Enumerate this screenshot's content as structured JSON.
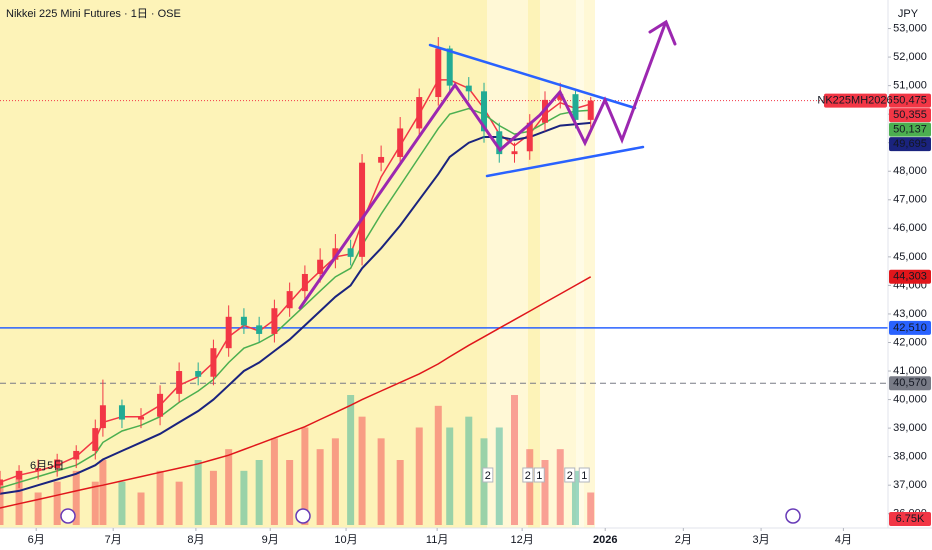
{
  "chart_data": {
    "type": "candlestick",
    "title": "Nikkei 225 Mini Futures · 1日 · OSE",
    "currency": "JPY",
    "up_color": "#f23645",
    "down_color": "#22ab94",
    "xlim": [
      0,
      233
    ],
    "xticks": [
      {
        "value": 9.5,
        "label": "6月"
      },
      {
        "value": 29.7,
        "label": "7月"
      },
      {
        "value": 51.4,
        "label": "8月"
      },
      {
        "value": 70.9,
        "label": "9月"
      },
      {
        "value": 90.8,
        "label": "10月"
      },
      {
        "value": 114.7,
        "label": "11月"
      },
      {
        "value": 137,
        "label": "12月"
      },
      {
        "value": 158.8,
        "label": "2026"
      },
      {
        "value": 179.3,
        "label": "2月"
      },
      {
        "value": 199.7,
        "label": "3月"
      },
      {
        "value": 221.3,
        "label": "4月"
      }
    ],
    "ylim": [
      35500,
      54000
    ],
    "yticks": [
      {
        "value": 36000,
        "label": "36,000"
      },
      {
        "value": 37000,
        "label": "37,000"
      },
      {
        "value": 38000,
        "label": "38,000"
      },
      {
        "value": 39000,
        "label": "39,000"
      },
      {
        "value": 40000,
        "label": "40,000"
      },
      {
        "value": 41000,
        "label": "41,000"
      },
      {
        "value": 42000,
        "label": "42,000"
      },
      {
        "value": 43000,
        "label": "43,000"
      },
      {
        "value": 44000,
        "label": "44,000"
      },
      {
        "value": 45000,
        "label": "45,000"
      },
      {
        "value": 46000,
        "label": "46,000"
      },
      {
        "value": 47000,
        "label": "47,000"
      },
      {
        "value": 48000,
        "label": "48,000"
      },
      {
        "value": 49000,
        "label": "49,000"
      },
      {
        "value": 50000,
        "label": "50,000"
      },
      {
        "value": 51000,
        "label": "51,000"
      },
      {
        "value": 52000,
        "label": "52,000"
      },
      {
        "value": 53000,
        "label": "53,000"
      }
    ],
    "x": [
      0,
      5,
      10,
      15,
      20,
      25,
      27,
      32,
      37,
      42,
      47,
      52,
      56,
      60,
      64,
      68,
      72,
      76,
      80,
      84,
      88,
      92,
      95,
      100,
      105,
      110,
      115,
      118,
      123,
      127,
      131,
      135,
      139,
      143,
      147,
      151,
      155
    ],
    "open": [
      37000,
      37200,
      37500,
      37600,
      37900,
      38200,
      39000,
      39800,
      39300,
      39400,
      40200,
      41000,
      40800,
      41800,
      42900,
      42600,
      42300,
      43200,
      43800,
      44400,
      44900,
      45300,
      45000,
      48300,
      48500,
      49500,
      50600,
      52300,
      51000,
      50800,
      49400,
      48600,
      48700,
      49700,
      50500,
      50700,
      49800
    ],
    "high": [
      37500,
      37700,
      37900,
      38100,
      38400,
      39300,
      40700,
      40000,
      39700,
      40500,
      41300,
      41300,
      42100,
      43300,
      43200,
      42900,
      43500,
      44100,
      44700,
      45300,
      45800,
      45600,
      48600,
      48900,
      49900,
      50900,
      52700,
      52400,
      51300,
      51100,
      49700,
      49000,
      50000,
      50800,
      51100,
      50900,
      50600
    ],
    "low": [
      36700,
      36900,
      37200,
      37300,
      37600,
      37900,
      38700,
      39000,
      39000,
      39100,
      39900,
      40500,
      40500,
      41500,
      42300,
      42000,
      42000,
      42900,
      43500,
      44100,
      44600,
      44700,
      44700,
      48000,
      48200,
      49200,
      50300,
      50700,
      50500,
      49000,
      48300,
      48300,
      48400,
      49400,
      50200,
      49500,
      49500
    ],
    "close": [
      37200,
      37500,
      37600,
      37900,
      38200,
      39000,
      39800,
      39300,
      39400,
      40200,
      41000,
      40800,
      41800,
      42900,
      42600,
      42300,
      43200,
      43800,
      44400,
      44900,
      45300,
      45000,
      48300,
      48500,
      49500,
      50600,
      52300,
      51000,
      50800,
      49400,
      48600,
      48700,
      49700,
      50500,
      50700,
      49800,
      50475
    ],
    "volume": [
      4,
      5,
      3,
      4,
      5,
      4,
      6,
      4,
      3,
      5,
      4,
      6,
      5,
      7,
      5,
      6,
      8,
      6,
      9,
      7,
      8,
      12,
      10,
      8,
      6,
      9,
      11,
      9,
      10,
      8,
      9,
      12,
      7,
      6,
      7,
      5,
      3
    ],
    "volume_lim": [
      0,
      12
    ],
    "lines": [
      {
        "color": "#f23645",
        "values": [
          37100,
          37350,
          37500,
          37700,
          38000,
          38600,
          39200,
          39400,
          39400,
          39800,
          40500,
          40800,
          41300,
          42200,
          42600,
          42400,
          42800,
          43400,
          44000,
          44500,
          45000,
          45100,
          46200,
          47800,
          48900,
          50000,
          51200,
          51200,
          50900,
          50200,
          49300,
          48900,
          49300,
          50000,
          50400,
          50200,
          50355
        ]
      },
      {
        "color": "#4caf50",
        "values": [
          36900,
          37100,
          37300,
          37500,
          37700,
          38100,
          38500,
          38900,
          39100,
          39400,
          39900,
          40300,
          40700,
          41300,
          41800,
          42000,
          42300,
          42800,
          43300,
          43800,
          44300,
          44600,
          45400,
          46500,
          47500,
          48500,
          49500,
          50000,
          50200,
          50000,
          49600,
          49300,
          49400,
          49700,
          50000,
          50100,
          50137
        ]
      },
      {
        "color": "#1a237e",
        "values": [
          36700,
          36800,
          37000,
          37200,
          37400,
          37700,
          37900,
          38200,
          38500,
          38800,
          39200,
          39600,
          40000,
          40500,
          41000,
          41300,
          41700,
          42100,
          42600,
          43100,
          43600,
          44000,
          44600,
          45300,
          46100,
          47000,
          47900,
          48500,
          49000,
          49200,
          49200,
          49100,
          49200,
          49400,
          49600,
          49650,
          49695
        ]
      },
      {
        "color": "#e0161b",
        "values": [
          36200,
          36350,
          36500,
          36650,
          36800,
          36950,
          37000,
          37150,
          37300,
          37450,
          37600,
          37750,
          37900,
          38050,
          38250,
          38450,
          38650,
          38850,
          39050,
          39300,
          39550,
          39800,
          40000,
          40300,
          40600,
          40900,
          41250,
          41500,
          41900,
          42200,
          42500,
          42800,
          43100,
          43400,
          43700,
          44000,
          44303
        ]
      }
    ],
    "hlines": [
      {
        "value": 42510,
        "color": "#2962ff",
        "dash": "none"
      },
      {
        "value": 40570,
        "color": "#787b86",
        "dash": "6 4"
      },
      {
        "value": 50475,
        "color": "#f23645",
        "dash": "1 2"
      }
    ],
    "symbol_tag": "NK225MH2026",
    "price_labels": [
      {
        "value": 50475,
        "label": "50,475",
        "color": "#f23645"
      },
      {
        "value": 50355,
        "label": "50,355",
        "color": "#f23645"
      },
      {
        "value": 50137,
        "label": "50,137",
        "color": "#4caf50"
      },
      {
        "value": 49695,
        "label": "49,695",
        "color": "#1a237e"
      },
      {
        "value": 44303,
        "label": "44,303",
        "color": "#e0161b"
      },
      {
        "value": 42510,
        "label": "42,510",
        "color": "#2962ff"
      },
      {
        "value": 40570,
        "label": "40,570",
        "color": "#787b86"
      }
    ],
    "volume_label": "6.75K",
    "events": [
      {
        "x": 128,
        "label": "2"
      },
      {
        "x": 138.5,
        "label": "2"
      },
      {
        "x": 141.5,
        "label": "1"
      },
      {
        "x": 149.5,
        "label": "2"
      },
      {
        "x": 153.3,
        "label": "1"
      }
    ],
    "date_note": "6月5日"
  }
}
